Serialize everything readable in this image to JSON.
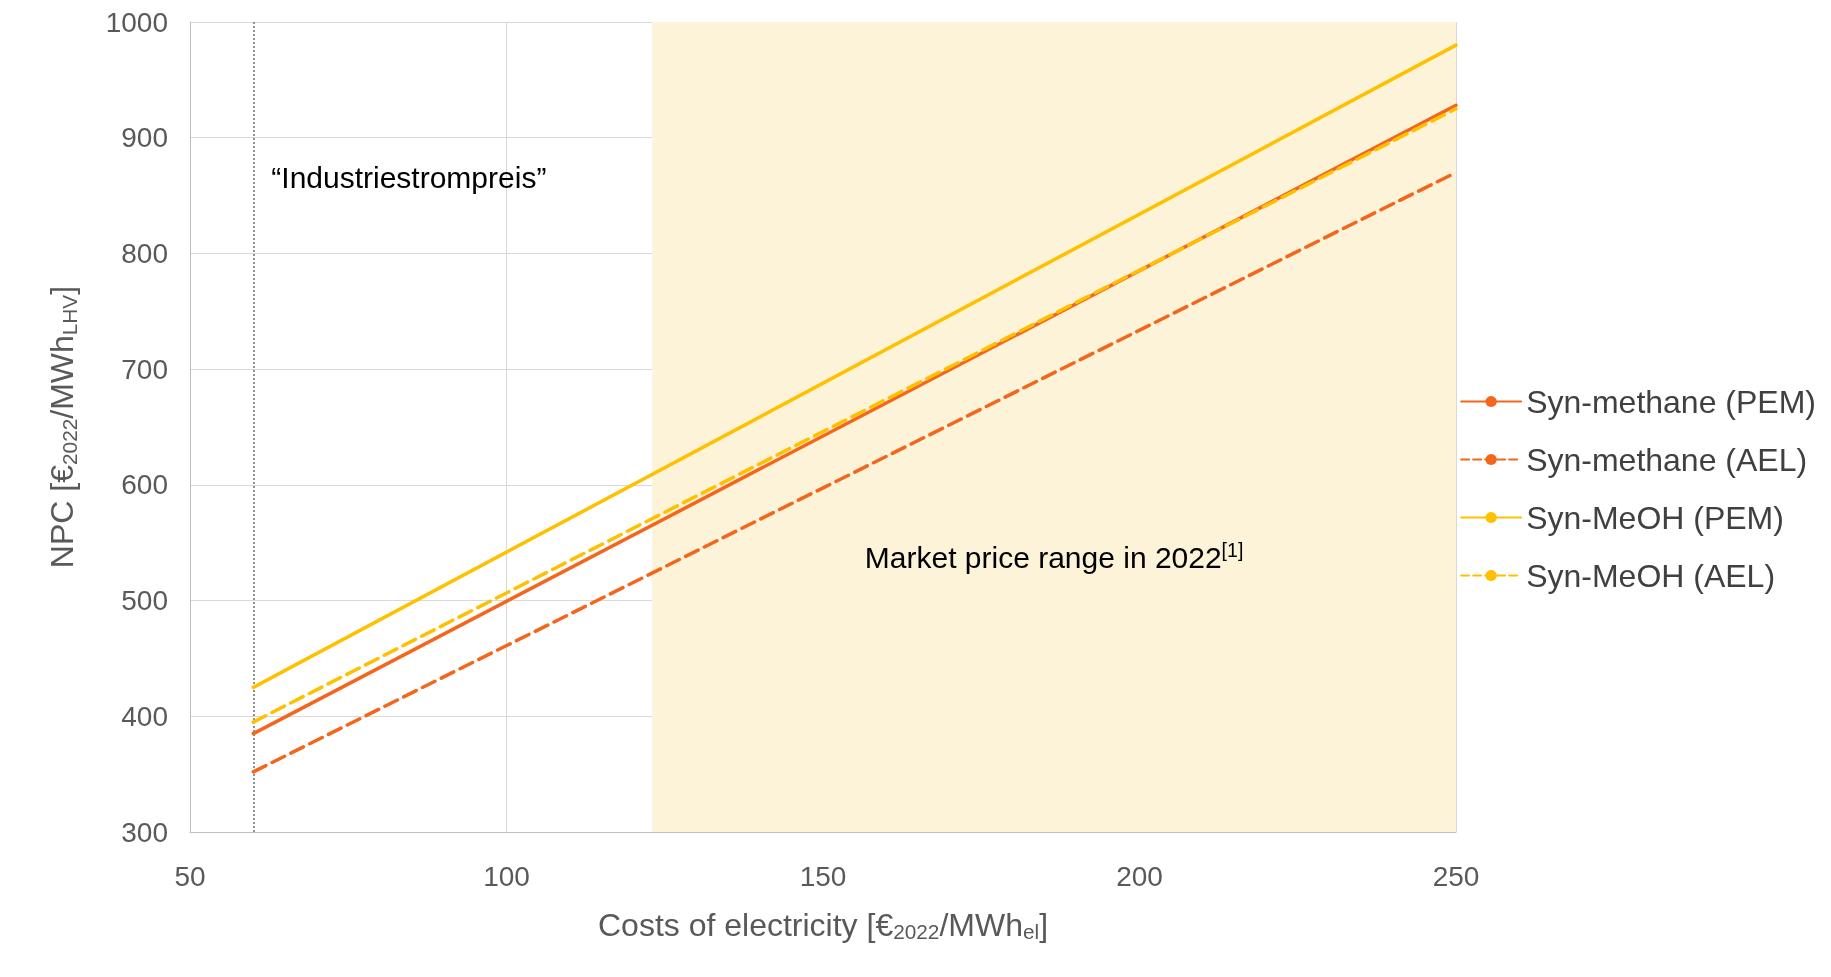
{
  "chart_data": {
    "type": "line",
    "xlabel": "Costs of electricity [€$_{2022}$/MWh$_{el}$]",
    "ylabel": "NPC [€$_{2022}$/MWh$_{LHV}$]",
    "x": [
      60,
      250
    ],
    "series": [
      {
        "name": "Syn-methane (PEM)",
        "color": "#f4661b",
        "values": [
          385,
          928
        ],
        "line_style": "solid"
      },
      {
        "name": "Syn-methane (AEL)",
        "color": "#f4661b",
        "values": [
          352,
          870
        ],
        "line_style": "dashed"
      },
      {
        "name": "Syn-MeOH (PEM)",
        "color": "#ffc000",
        "values": [
          425,
          980
        ],
        "line_style": "solid"
      },
      {
        "name": "Syn-MeOH (AEL)",
        "color": "#ffc000",
        "values": [
          395,
          925
        ],
        "line_style": "dashed"
      }
    ],
    "xlim": [
      50,
      250
    ],
    "xticks": [
      50,
      100,
      150,
      200,
      250
    ],
    "ylim": [
      300,
      1000
    ],
    "yticks": [
      300,
      400,
      500,
      600,
      700,
      800,
      900,
      1000
    ],
    "grid": true,
    "legend": "right",
    "marker": "none",
    "ref_lines": [
      {
        "axis": "x",
        "value": 60,
        "label": "“Industriestrompreis”",
        "color": "#909090",
        "line_style": "dotted"
      }
    ],
    "bands": [
      {
        "axis": "x",
        "from": 123,
        "to": 250,
        "label": "Market price range in 2022$^{[1]}$",
        "color": "#fdf3d9"
      }
    ]
  }
}
